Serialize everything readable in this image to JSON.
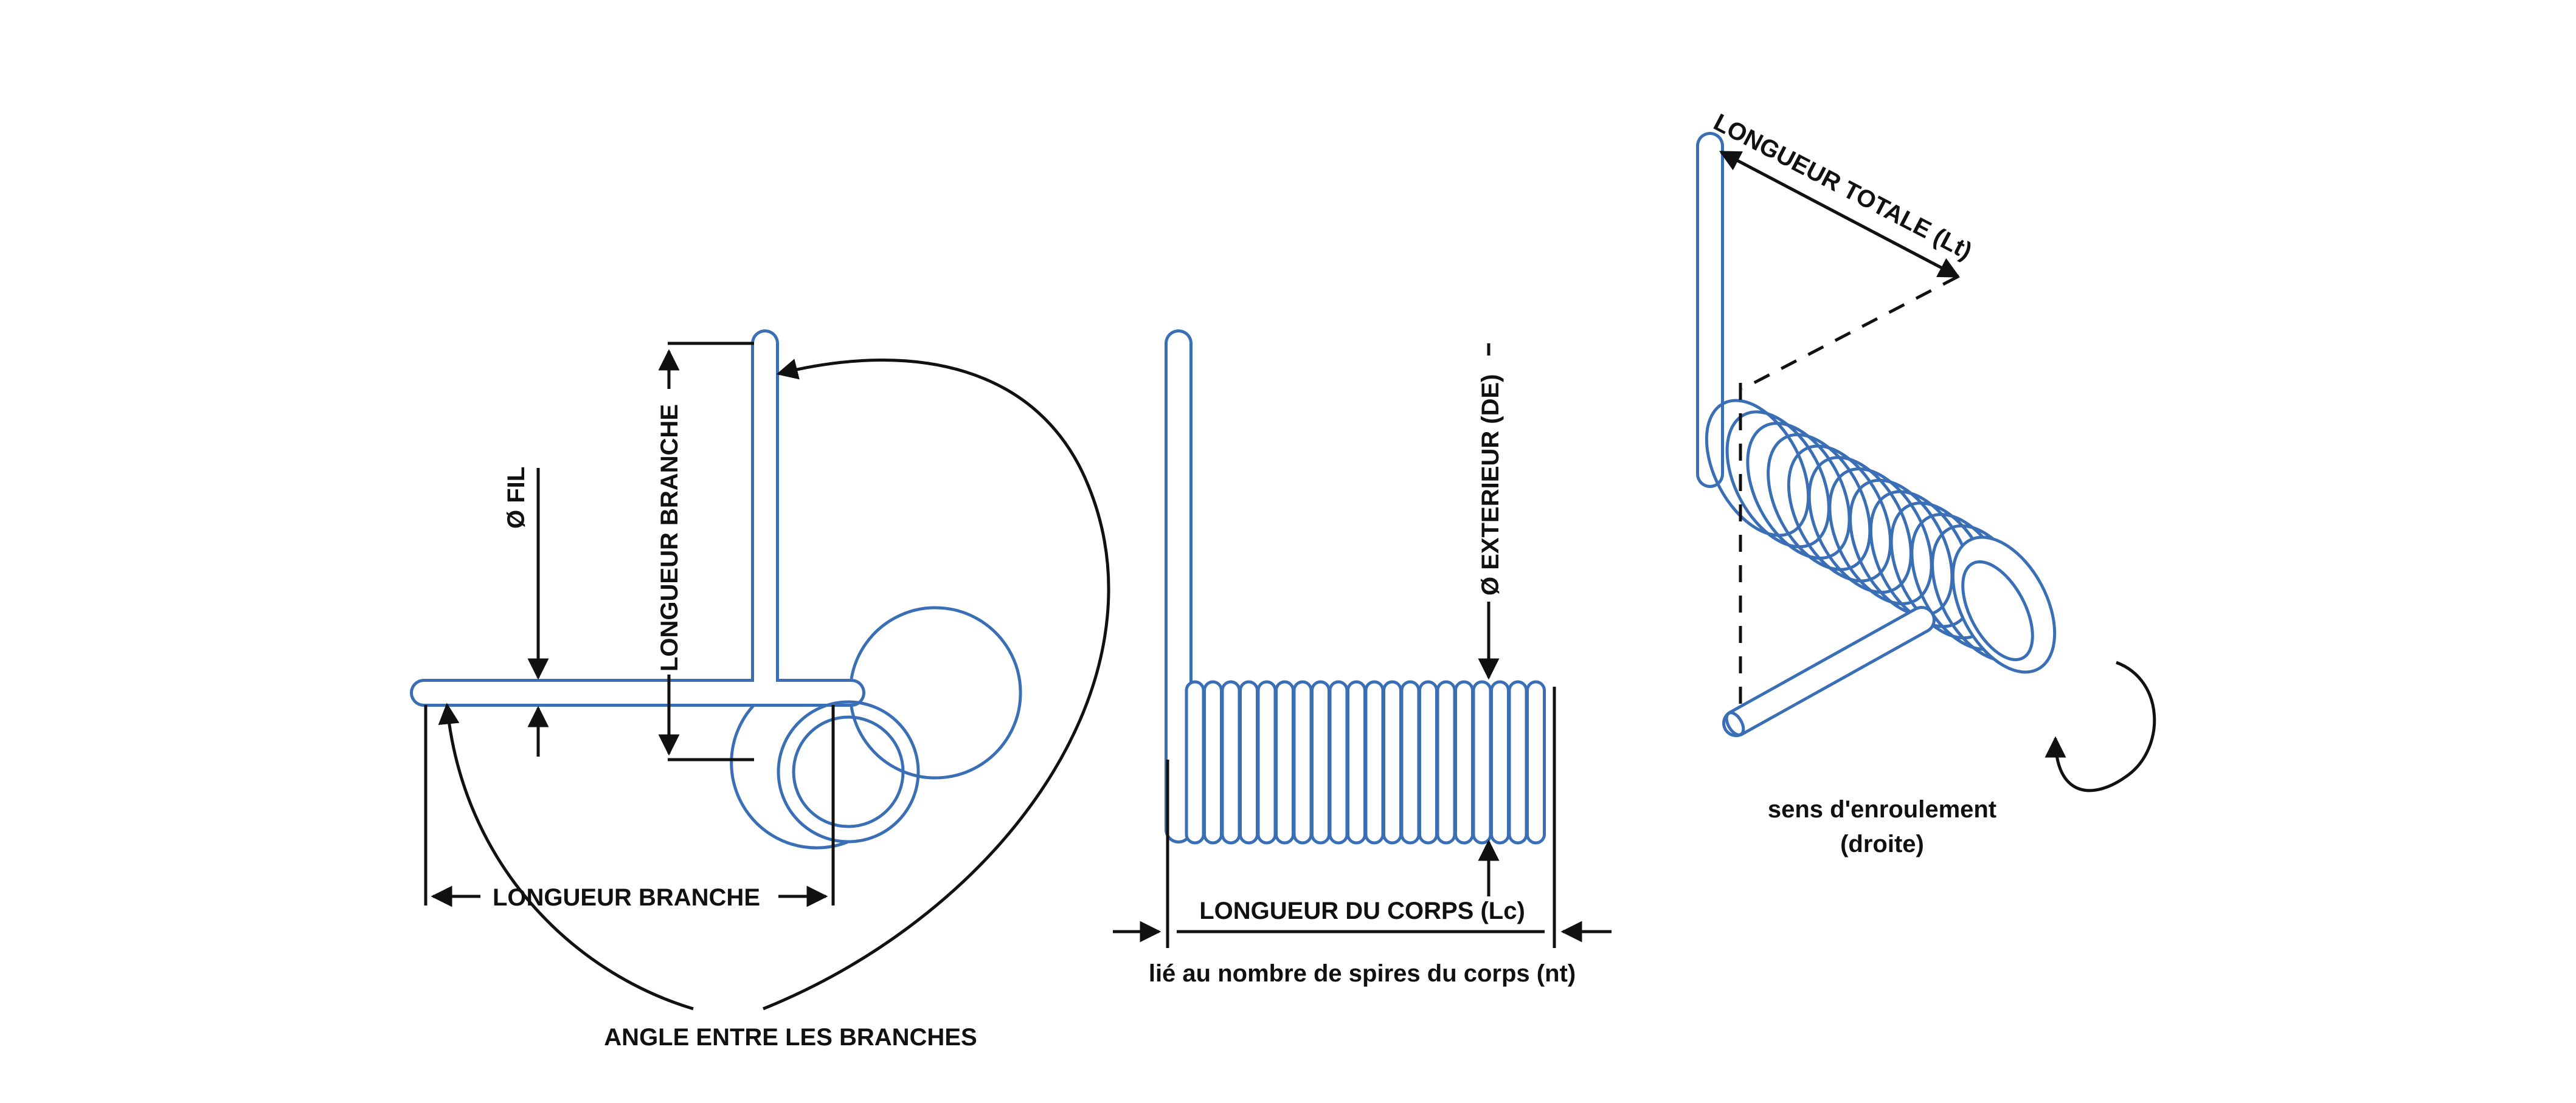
{
  "labels": {
    "diameter_wire": "Ø FIL",
    "leg_length_vertical": "LONGUEUR BRANCHE",
    "leg_length_horizontal": "LONGUEUR BRANCHE",
    "angle_between_legs": "ANGLE ENTRE LES BRANCHES",
    "outer_diameter": "Ø EXTERIEUR (DE)",
    "body_length": "LONGUEUR DU CORPS (Lc)",
    "body_length_note": "lié au nombre de spires du corps (nt)",
    "total_length": "LONGUEUR TOTALE (Lt)",
    "winding_direction_line1": "sens d'enroulement",
    "winding_direction_line2": "(droite)"
  },
  "colors": {
    "wire": "#3a6fb5",
    "annotation": "#111111",
    "background": "#ffffff"
  }
}
